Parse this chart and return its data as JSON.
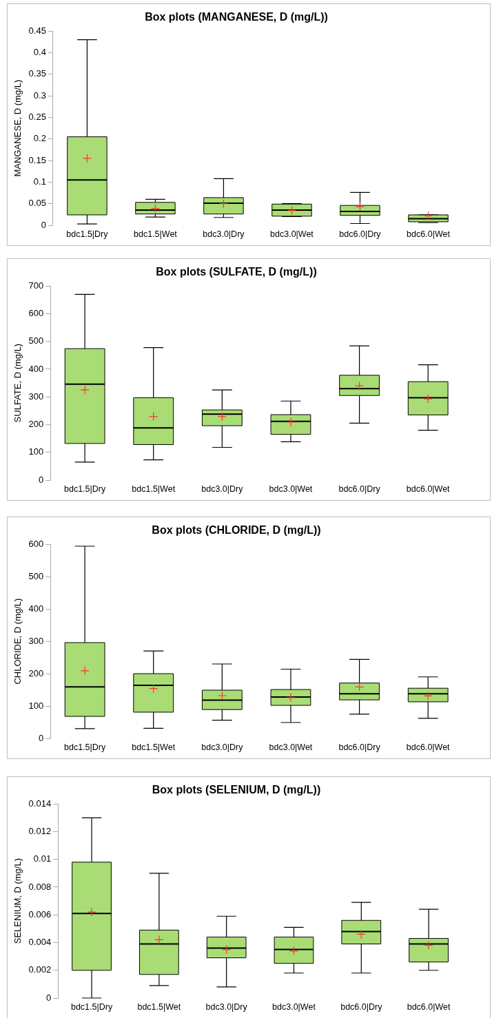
{
  "chart_data": [
    {
      "type": "box",
      "title": "Box plots (MANGANESE, D (mg/L))",
      "ylabel": "MANGANESE, D (mg/L)",
      "categories": [
        "bdc1.5|Dry",
        "bdc1.5|Wet",
        "bdc3.0|Dry",
        "bdc3.0|Wet",
        "bdc6.0|Dry",
        "bdc6.0|Wet"
      ],
      "color": "#a9dc74",
      "marker": "cross",
      "ylim": [
        0,
        0.45
      ],
      "yticks": [
        0,
        0.05,
        0.1,
        0.15,
        0.2,
        0.25,
        0.3,
        0.35,
        0.4,
        0.45
      ],
      "grid": false,
      "legend": false,
      "boxes": [
        {
          "low": 0.003,
          "q1": 0.024,
          "median": 0.105,
          "q3": 0.205,
          "high": 0.43,
          "mean": 0.155
        },
        {
          "low": 0.019,
          "q1": 0.026,
          "median": 0.035,
          "q3": 0.053,
          "high": 0.06,
          "mean": 0.039
        },
        {
          "low": 0.018,
          "q1": 0.026,
          "median": 0.051,
          "q3": 0.064,
          "high": 0.108,
          "mean": 0.05
        },
        {
          "low": 0.02,
          "q1": 0.021,
          "median": 0.035,
          "q3": 0.049,
          "high": 0.05,
          "mean": 0.034
        },
        {
          "low": 0.004,
          "q1": 0.023,
          "median": 0.032,
          "q3": 0.046,
          "high": 0.076,
          "mean": 0.043
        },
        {
          "low": 0.006,
          "q1": 0.008,
          "median": 0.015,
          "q3": 0.024,
          "high": 0.024,
          "mean": 0.022
        }
      ]
    },
    {
      "type": "box",
      "title": "Box plots (SULFATE, D (mg/L))",
      "ylabel": "SULFATE, D (mg/L)",
      "categories": [
        "bdc1.5|Dry",
        "bdc1.5|Wet",
        "bdc3.0|Dry",
        "bdc3.0|Wet",
        "bdc6.0|Dry",
        "bdc6.0|Wet"
      ],
      "color": "#a9dc74",
      "marker": "cross",
      "ylim": [
        0,
        700
      ],
      "yticks": [
        0,
        100,
        200,
        300,
        400,
        500,
        600,
        700
      ],
      "grid": false,
      "legend": false,
      "boxes": [
        {
          "low": 65,
          "q1": 132,
          "median": 346,
          "q3": 474,
          "high": 670,
          "mean": 325
        },
        {
          "low": 73,
          "q1": 128,
          "median": 188,
          "q3": 297,
          "high": 478,
          "mean": 229
        },
        {
          "low": 118,
          "q1": 196,
          "median": 238,
          "q3": 253,
          "high": 325,
          "mean": 229
        },
        {
          "low": 138,
          "q1": 165,
          "median": 212,
          "q3": 236,
          "high": 285,
          "mean": 209
        },
        {
          "low": 205,
          "q1": 305,
          "median": 330,
          "q3": 378,
          "high": 484,
          "mean": 340
        },
        {
          "low": 180,
          "q1": 235,
          "median": 297,
          "q3": 355,
          "high": 416,
          "mean": 293
        }
      ]
    },
    {
      "type": "box",
      "title": "Box plots (CHLORIDE, D (mg/L))",
      "ylabel": "CHLORIDE, D (mg/L)",
      "categories": [
        "bdc1.5|Dry",
        "bdc1.5|Wet",
        "bdc3.0|Dry",
        "bdc3.0|Wet",
        "bdc6.0|Dry",
        "bdc6.0|Wet"
      ],
      "color": "#a9dc74",
      "marker": "cross",
      "ylim": [
        0,
        600
      ],
      "yticks": [
        0,
        100,
        200,
        300,
        400,
        500,
        600
      ],
      "grid": false,
      "legend": false,
      "boxes": [
        {
          "low": 30,
          "q1": 68,
          "median": 159,
          "q3": 296,
          "high": 594,
          "mean": 209
        },
        {
          "low": 31,
          "q1": 81,
          "median": 164,
          "q3": 200,
          "high": 270,
          "mean": 154
        },
        {
          "low": 56,
          "q1": 89,
          "median": 118,
          "q3": 149,
          "high": 230,
          "mean": 132
        },
        {
          "low": 49,
          "q1": 102,
          "median": 128,
          "q3": 151,
          "high": 214,
          "mean": 126
        },
        {
          "low": 75,
          "q1": 119,
          "median": 138,
          "q3": 171,
          "high": 244,
          "mean": 159
        },
        {
          "low": 62,
          "q1": 113,
          "median": 138,
          "q3": 155,
          "high": 190,
          "mean": 131
        }
      ]
    },
    {
      "type": "box",
      "title": "Box plots (SELENIUM, D (mg/L))",
      "ylabel": "SELENIUM, D (mg/L)",
      "categories": [
        "bdc1.5|Dry",
        "bdc1.5|Wet",
        "bdc3.0|Dry",
        "bdc3.0|Wet",
        "bdc6.0|Dry",
        "bdc6.0|Wet"
      ],
      "color": "#a9dc74",
      "marker": "cross",
      "ylim": [
        0,
        0.014
      ],
      "yticks": [
        0,
        0.002,
        0.004,
        0.006,
        0.008,
        0.01,
        0.012,
        0.014
      ],
      "grid": false,
      "legend": false,
      "boxes": [
        {
          "low": 0,
          "q1": 0.002,
          "median": 0.0061,
          "q3": 0.0098,
          "high": 0.013,
          "mean": 0.0062
        },
        {
          "low": 0.0009,
          "q1": 0.0017,
          "median": 0.0039,
          "q3": 0.0049,
          "high": 0.009,
          "mean": 0.0042
        },
        {
          "low": 0.0008,
          "q1": 0.0029,
          "median": 0.0036,
          "q3": 0.0044,
          "high": 0.0059,
          "mean": 0.0035
        },
        {
          "low": 0.0018,
          "q1": 0.0025,
          "median": 0.0035,
          "q3": 0.0044,
          "high": 0.0051,
          "mean": 0.0034
        },
        {
          "low": 0.0018,
          "q1": 0.0039,
          "median": 0.0048,
          "q3": 0.0056,
          "high": 0.0069,
          "mean": 0.0046
        },
        {
          "low": 0.002,
          "q1": 0.0026,
          "median": 0.0039,
          "q3": 0.0043,
          "high": 0.0064,
          "mean": 0.0038
        }
      ]
    }
  ]
}
